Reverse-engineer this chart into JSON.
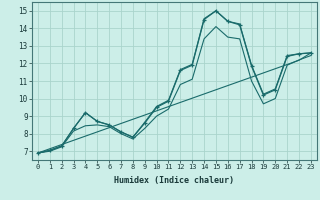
{
  "xlabel": "Humidex (Indice chaleur)",
  "ylabel": "",
  "xlim": [
    -0.5,
    23.5
  ],
  "ylim": [
    6.5,
    15.5
  ],
  "xticks": [
    0,
    1,
    2,
    3,
    4,
    5,
    6,
    7,
    8,
    9,
    10,
    11,
    12,
    13,
    14,
    15,
    16,
    17,
    18,
    19,
    20,
    21,
    22,
    23
  ],
  "yticks": [
    7,
    8,
    9,
    10,
    11,
    12,
    13,
    14,
    15
  ],
  "bg_color": "#cceee8",
  "grid_color": "#aad4cc",
  "line_color": "#1a6b6b",
  "x": [
    0,
    1,
    2,
    3,
    4,
    5,
    6,
    7,
    8,
    9,
    10,
    11,
    12,
    13,
    14,
    15,
    16,
    17,
    18,
    19,
    20,
    21,
    22,
    23
  ],
  "y_main": [
    6.9,
    7.05,
    7.3,
    8.3,
    9.2,
    8.7,
    8.5,
    8.1,
    7.8,
    8.6,
    9.5,
    9.85,
    11.6,
    11.9,
    14.5,
    15.0,
    14.4,
    14.2,
    11.85,
    10.2,
    10.5,
    12.4,
    12.55,
    12.6
  ],
  "y_high": [
    6.9,
    7.05,
    7.3,
    8.3,
    9.2,
    8.7,
    8.5,
    8.1,
    7.8,
    8.65,
    9.55,
    9.9,
    11.65,
    11.95,
    14.55,
    15.0,
    14.4,
    14.25,
    11.9,
    10.25,
    10.55,
    12.45,
    12.55,
    12.6
  ],
  "y_low": [
    6.9,
    7.0,
    7.25,
    8.15,
    8.45,
    8.5,
    8.4,
    8.0,
    7.7,
    8.3,
    9.0,
    9.4,
    10.8,
    11.1,
    13.4,
    14.1,
    13.5,
    13.4,
    11.0,
    9.7,
    10.0,
    11.9,
    12.2,
    12.45
  ],
  "y_trend": [
    6.9,
    7.14,
    7.38,
    7.62,
    7.86,
    8.1,
    8.34,
    8.58,
    8.82,
    9.06,
    9.3,
    9.54,
    9.78,
    10.02,
    10.26,
    10.5,
    10.74,
    10.98,
    11.22,
    11.46,
    11.7,
    11.94,
    12.18,
    12.6
  ]
}
